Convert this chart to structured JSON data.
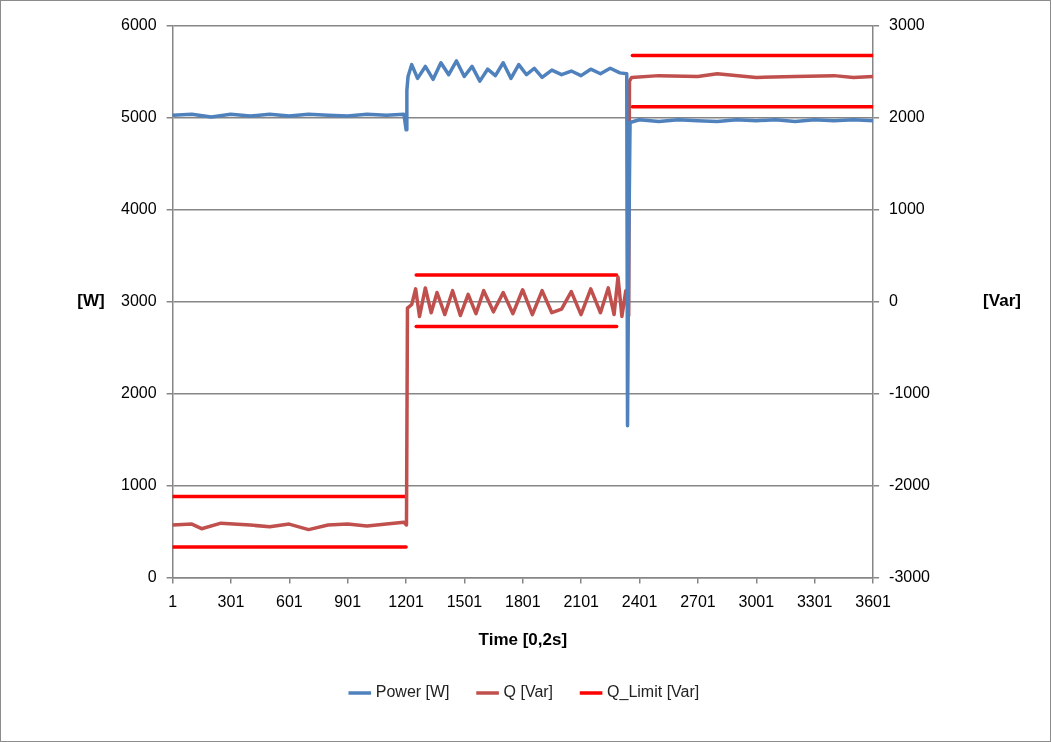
{
  "chart_data": {
    "type": "line",
    "xlabel": "Time [0,2s]",
    "ylabel": "[W]",
    "y2label": "[Var]",
    "xlim": [
      1,
      3601
    ],
    "xticks": [
      1,
      301,
      601,
      901,
      1201,
      1501,
      1801,
      2101,
      2401,
      2701,
      3001,
      3301,
      3601
    ],
    "ylim": [
      0,
      6000
    ],
    "yticks": [
      0,
      1000,
      2000,
      3000,
      4000,
      5000,
      6000
    ],
    "y2lim": [
      -3000,
      3000
    ],
    "y2ticks": [
      -3000,
      -2000,
      -1000,
      0,
      1000,
      2000,
      3000
    ],
    "grid": "y",
    "legend": "bottom",
    "marker": "none",
    "line_style": "solid",
    "series": [
      {
        "name": "Power [W]",
        "color": "#4f81bd",
        "x": [
          1,
          100,
          200,
          300,
          400,
          500,
          600,
          700,
          800,
          900,
          1000,
          1100,
          1190,
          1201,
          1205,
          1211,
          1230,
          1260,
          1300,
          1340,
          1380,
          1420,
          1460,
          1500,
          1540,
          1580,
          1620,
          1660,
          1700,
          1740,
          1780,
          1820,
          1860,
          1900,
          1950,
          2000,
          2050,
          2100,
          2150,
          2200,
          2250,
          2300,
          2335,
          2339,
          2345,
          2352,
          2400,
          2500,
          2600,
          2700,
          2800,
          2900,
          3000,
          3100,
          3200,
          3300,
          3400,
          3500,
          3601
        ],
        "values": [
          5030,
          5040,
          5010,
          5040,
          5020,
          5040,
          5020,
          5040,
          5030,
          5020,
          5040,
          5030,
          5040,
          4870,
          5300,
          5450,
          5580,
          5430,
          5560,
          5420,
          5600,
          5470,
          5620,
          5450,
          5560,
          5400,
          5530,
          5460,
          5600,
          5430,
          5580,
          5470,
          5540,
          5440,
          5520,
          5470,
          5510,
          5460,
          5530,
          5480,
          5540,
          5490,
          5480,
          1650,
          3500,
          4950,
          4980,
          4960,
          4980,
          4970,
          4960,
          4980,
          4970,
          4980,
          4960,
          4980,
          4970,
          4980,
          4970
        ]
      },
      {
        "name": "Q [Var]",
        "color": "#c0504d",
        "axis": "y2",
        "x": [
          1,
          100,
          150,
          250,
          400,
          500,
          600,
          700,
          800,
          900,
          1000,
          1100,
          1190,
          1203,
          1208,
          1230,
          1250,
          1270,
          1300,
          1330,
          1360,
          1400,
          1440,
          1480,
          1520,
          1560,
          1600,
          1650,
          1700,
          1750,
          1800,
          1850,
          1900,
          1950,
          2000,
          2050,
          2100,
          2150,
          2200,
          2240,
          2270,
          2290,
          2310,
          2330,
          2345,
          2349,
          2360,
          2500,
          2700,
          2800,
          3000,
          3200,
          3400,
          3500,
          3601
        ],
        "values": [
          -2430,
          -2420,
          -2470,
          -2410,
          -2430,
          -2450,
          -2420,
          -2480,
          -2430,
          -2420,
          -2440,
          -2420,
          -2400,
          -2430,
          -70,
          -30,
          140,
          -160,
          150,
          -120,
          100,
          -140,
          120,
          -150,
          80,
          -130,
          120,
          -110,
          100,
          -130,
          130,
          -140,
          120,
          -120,
          -80,
          110,
          -140,
          140,
          -120,
          150,
          -140,
          270,
          -160,
          120,
          -150,
          2400,
          2440,
          2460,
          2450,
          2480,
          2440,
          2450,
          2460,
          2440,
          2450
        ]
      },
      {
        "name": "Q_Limit [Var]",
        "color": "#ff0000",
        "axis": "y2",
        "x": [
          1,
          1201
        ],
        "values": [
          -2120,
          -2120
        ]
      },
      {
        "color": "#ff0000",
        "axis": "y2",
        "x": [
          1,
          1201
        ],
        "values": [
          -2670,
          -2670
        ]
      },
      {
        "color": "#ff0000",
        "axis": "y2",
        "x": [
          1253,
          2283
        ],
        "values": [
          290,
          290
        ]
      },
      {
        "color": "#ff0000",
        "axis": "y2",
        "x": [
          1253,
          2283
        ],
        "values": [
          -270,
          -270
        ]
      },
      {
        "color": "#ff0000",
        "axis": "y2",
        "x": [
          2364,
          3601
        ],
        "values": [
          2680,
          2680
        ]
      },
      {
        "color": "#ff0000",
        "axis": "y2",
        "x": [
          2364,
          3601
        ],
        "values": [
          2120,
          2120
        ]
      }
    ]
  }
}
